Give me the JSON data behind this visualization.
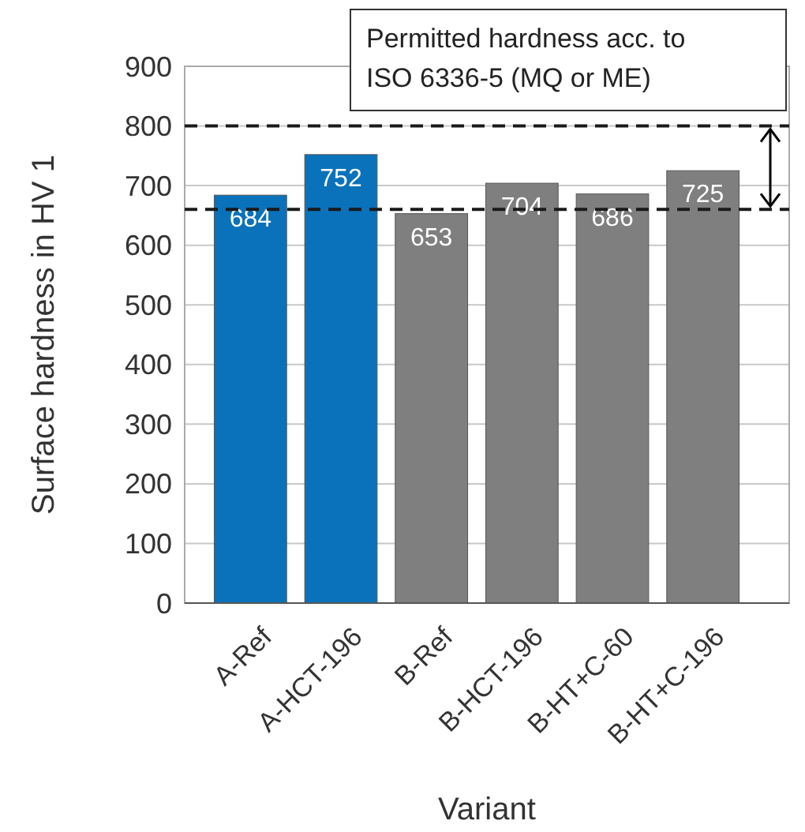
{
  "chart_data": {
    "type": "bar",
    "xlabel": "Variant",
    "ylabel": "Surface hardness in HV 1",
    "categories": [
      "A-Ref",
      "A-HCT-196",
      "B-Ref",
      "B-HCT-196",
      "B-HT+C-60",
      "B-HT+C-196"
    ],
    "values": [
      684,
      752,
      653,
      704,
      686,
      725
    ],
    "colors": [
      "#0a72ba",
      "#0a72ba",
      "#7f7f7f",
      "#7f7f7f",
      "#7f7f7f",
      "#7f7f7f"
    ],
    "ylim": [
      0,
      900
    ],
    "yticks": [
      0,
      100,
      200,
      300,
      400,
      500,
      600,
      700,
      800,
      900
    ],
    "grid": "y",
    "data_labels": true,
    "ref_lines": [
      {
        "axis": "y",
        "value": 800,
        "line_style": "dashed",
        "color": "#1a1a1a"
      },
      {
        "axis": "y",
        "value": 660,
        "line_style": "dashed",
        "color": "#1a1a1a"
      }
    ],
    "annotations": [
      "Permitted hardness acc. to\nISO 6336-5 (MQ or ME)"
    ]
  }
}
